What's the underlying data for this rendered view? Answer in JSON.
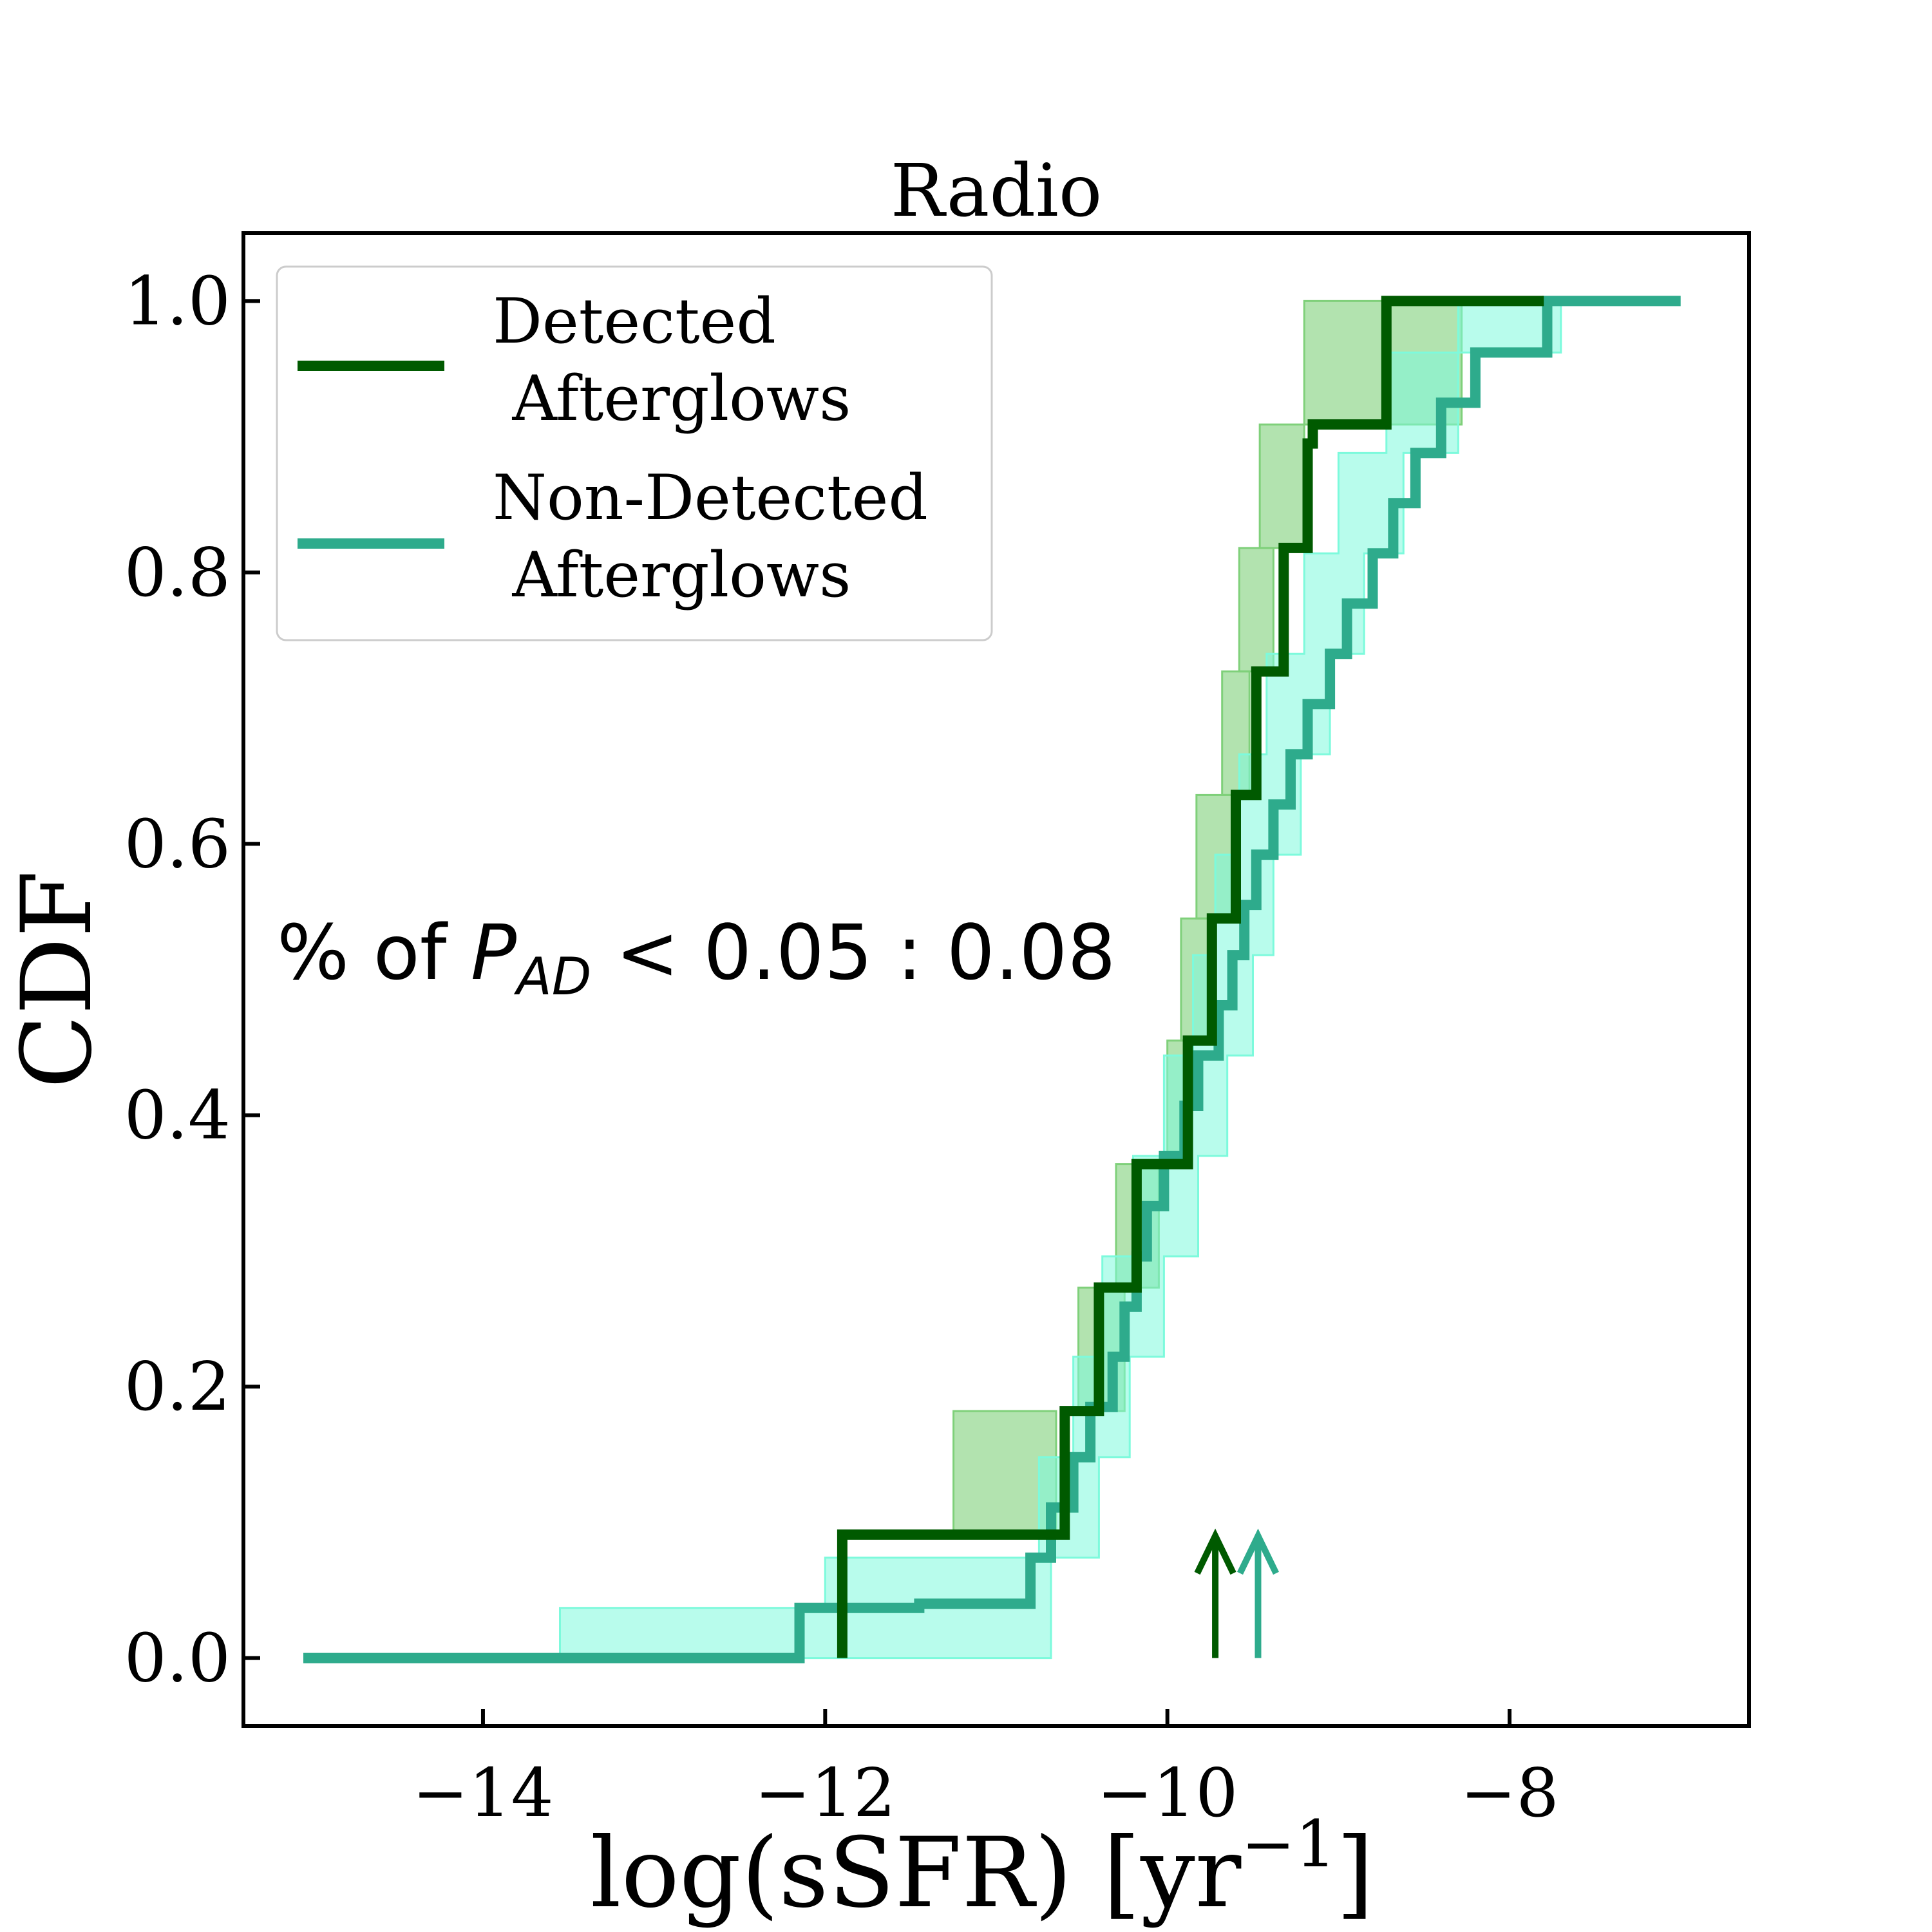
{
  "chart_data": {
    "type": "line",
    "title": "Radio",
    "xlabel": "log(sSFR) [yr",
    "xlabel_sup": "−1",
    "xlabel_close": "]",
    "ylabel": "CDF",
    "xlim": [
      -15.4,
      -6.6
    ],
    "ylim": [
      -0.05,
      1.05
    ],
    "xticks": [
      -14,
      -12,
      -10,
      -8
    ],
    "xtick_labels": [
      "−14",
      "−12",
      "−10",
      "−8"
    ],
    "yticks": [
      0.0,
      0.2,
      0.4,
      0.6,
      0.8,
      1.0
    ],
    "ytick_labels": [
      "0.0",
      "0.2",
      "0.4",
      "0.6",
      "0.8",
      "1.0"
    ],
    "legend_position": "upper-left",
    "annotation": {
      "prefix": "% of ",
      "symbol": "P",
      "subscript": "AD",
      "suffix": " < 0.05 : 0.08"
    },
    "series": [
      {
        "name": "Detected Afterglows",
        "legend_lines": [
          "Detected",
          " Afterglows"
        ],
        "color": "#005a00",
        "band_color": "#7fd07a",
        "median_arrow_x": -9.72,
        "steps": [
          [
            -11.9,
            0.0
          ],
          [
            -11.9,
            0.091
          ],
          [
            -10.6,
            0.091
          ],
          [
            -10.6,
            0.182
          ],
          [
            -10.4,
            0.182
          ],
          [
            -10.4,
            0.273
          ],
          [
            -10.18,
            0.273
          ],
          [
            -10.18,
            0.364
          ],
          [
            -9.88,
            0.364
          ],
          [
            -9.88,
            0.455
          ],
          [
            -9.74,
            0.455
          ],
          [
            -9.74,
            0.545
          ],
          [
            -9.6,
            0.545
          ],
          [
            -9.6,
            0.636
          ],
          [
            -9.48,
            0.636
          ],
          [
            -9.48,
            0.727
          ],
          [
            -9.32,
            0.727
          ],
          [
            -9.32,
            0.818
          ],
          [
            -9.18,
            0.818
          ],
          [
            -9.18,
            0.895
          ],
          [
            -9.15,
            0.895
          ],
          [
            -9.15,
            0.909
          ],
          [
            -8.72,
            0.909
          ],
          [
            -8.72,
            1.0
          ],
          [
            -7.8,
            1.0
          ]
        ],
        "band": [
          [
            -11.25,
            -10.65,
            0.091,
            0.182
          ],
          [
            -10.52,
            -10.25,
            0.182,
            0.273
          ],
          [
            -10.3,
            -10.05,
            0.273,
            0.364
          ],
          [
            -10.0,
            -9.9,
            0.364,
            0.455
          ],
          [
            -9.92,
            -9.76,
            0.455,
            0.545
          ],
          [
            -9.83,
            -9.62,
            0.545,
            0.636
          ],
          [
            -9.68,
            -9.52,
            0.636,
            0.727
          ],
          [
            -9.58,
            -9.38,
            0.727,
            0.818
          ],
          [
            -9.46,
            -9.2,
            0.818,
            0.909
          ],
          [
            -9.2,
            -8.28,
            0.909,
            1.0
          ]
        ]
      },
      {
        "name": "Non-Detected Afterglows",
        "legend_lines": [
          "Non-Detected",
          " Afterglows"
        ],
        "color": "#2eab8c",
        "band_color": "#7dfadc",
        "median_arrow_x": -9.47,
        "steps": [
          [
            -15.05,
            0.0
          ],
          [
            -12.15,
            0.0
          ],
          [
            -12.15,
            0.037
          ],
          [
            -11.45,
            0.037
          ],
          [
            -11.45,
            0.04
          ],
          [
            -10.8,
            0.04
          ],
          [
            -10.8,
            0.074
          ],
          [
            -10.68,
            0.074
          ],
          [
            -10.68,
            0.111
          ],
          [
            -10.55,
            0.111
          ],
          [
            -10.55,
            0.148
          ],
          [
            -10.45,
            0.148
          ],
          [
            -10.45,
            0.185
          ],
          [
            -10.32,
            0.185
          ],
          [
            -10.32,
            0.222
          ],
          [
            -10.25,
            0.222
          ],
          [
            -10.25,
            0.259
          ],
          [
            -10.18,
            0.259
          ],
          [
            -10.18,
            0.296
          ],
          [
            -10.12,
            0.296
          ],
          [
            -10.12,
            0.333
          ],
          [
            -10.02,
            0.333
          ],
          [
            -10.02,
            0.37
          ],
          [
            -9.9,
            0.37
          ],
          [
            -9.9,
            0.407
          ],
          [
            -9.82,
            0.407
          ],
          [
            -9.82,
            0.444
          ],
          [
            -9.7,
            0.444
          ],
          [
            -9.7,
            0.481
          ],
          [
            -9.62,
            0.481
          ],
          [
            -9.62,
            0.518
          ],
          [
            -9.55,
            0.518
          ],
          [
            -9.55,
            0.555
          ],
          [
            -9.48,
            0.555
          ],
          [
            -9.48,
            0.592
          ],
          [
            -9.38,
            0.592
          ],
          [
            -9.38,
            0.629
          ],
          [
            -9.28,
            0.629
          ],
          [
            -9.28,
            0.666
          ],
          [
            -9.18,
            0.666
          ],
          [
            -9.18,
            0.703
          ],
          [
            -9.05,
            0.703
          ],
          [
            -9.05,
            0.74
          ],
          [
            -8.95,
            0.74
          ],
          [
            -8.95,
            0.777
          ],
          [
            -8.8,
            0.777
          ],
          [
            -8.8,
            0.814
          ],
          [
            -8.68,
            0.814
          ],
          [
            -8.68,
            0.851
          ],
          [
            -8.55,
            0.851
          ],
          [
            -8.55,
            0.888
          ],
          [
            -8.4,
            0.888
          ],
          [
            -8.4,
            0.925
          ],
          [
            -8.2,
            0.925
          ],
          [
            -8.2,
            0.962
          ],
          [
            -7.78,
            0.962
          ],
          [
            -7.78,
            1.0
          ],
          [
            -7.0,
            1.0
          ]
        ],
        "band_upper": [
          [
            -13.55,
            0.0
          ],
          [
            -13.55,
            0.037
          ],
          [
            -12.0,
            0.037
          ],
          [
            -12.0,
            0.074
          ],
          [
            -10.75,
            0.074
          ],
          [
            -10.75,
            0.148
          ],
          [
            -10.55,
            0.148
          ],
          [
            -10.55,
            0.222
          ],
          [
            -10.38,
            0.222
          ],
          [
            -10.38,
            0.296
          ],
          [
            -10.2,
            0.296
          ],
          [
            -10.2,
            0.37
          ],
          [
            -10.02,
            0.37
          ],
          [
            -10.02,
            0.444
          ],
          [
            -9.85,
            0.444
          ],
          [
            -9.85,
            0.518
          ],
          [
            -9.72,
            0.518
          ],
          [
            -9.72,
            0.592
          ],
          [
            -9.58,
            0.592
          ],
          [
            -9.58,
            0.666
          ],
          [
            -9.42,
            0.666
          ],
          [
            -9.42,
            0.74
          ],
          [
            -9.2,
            0.74
          ],
          [
            -9.2,
            0.814
          ],
          [
            -9.0,
            0.814
          ],
          [
            -9.0,
            0.888
          ],
          [
            -8.72,
            0.888
          ],
          [
            -8.72,
            0.962
          ],
          [
            -8.3,
            0.962
          ],
          [
            -8.3,
            1.0
          ],
          [
            -7.7,
            1.0
          ]
        ],
        "band_lower": [
          [
            -12.15,
            0.0
          ],
          [
            -12.15,
            0.0
          ],
          [
            -10.68,
            0.0
          ],
          [
            -10.68,
            0.074
          ],
          [
            -10.4,
            0.074
          ],
          [
            -10.4,
            0.148
          ],
          [
            -10.22,
            0.148
          ],
          [
            -10.22,
            0.222
          ],
          [
            -10.02,
            0.222
          ],
          [
            -10.02,
            0.296
          ],
          [
            -9.82,
            0.296
          ],
          [
            -9.82,
            0.37
          ],
          [
            -9.65,
            0.37
          ],
          [
            -9.65,
            0.444
          ],
          [
            -9.5,
            0.444
          ],
          [
            -9.5,
            0.518
          ],
          [
            -9.38,
            0.518
          ],
          [
            -9.38,
            0.592
          ],
          [
            -9.22,
            0.592
          ],
          [
            -9.22,
            0.666
          ],
          [
            -9.05,
            0.666
          ],
          [
            -9.05,
            0.74
          ],
          [
            -8.85,
            0.74
          ],
          [
            -8.85,
            0.814
          ],
          [
            -8.62,
            0.814
          ],
          [
            -8.62,
            0.888
          ],
          [
            -8.3,
            0.888
          ],
          [
            -8.3,
            0.962
          ],
          [
            -7.7,
            0.962
          ],
          [
            -7.7,
            1.0
          ]
        ]
      }
    ]
  }
}
